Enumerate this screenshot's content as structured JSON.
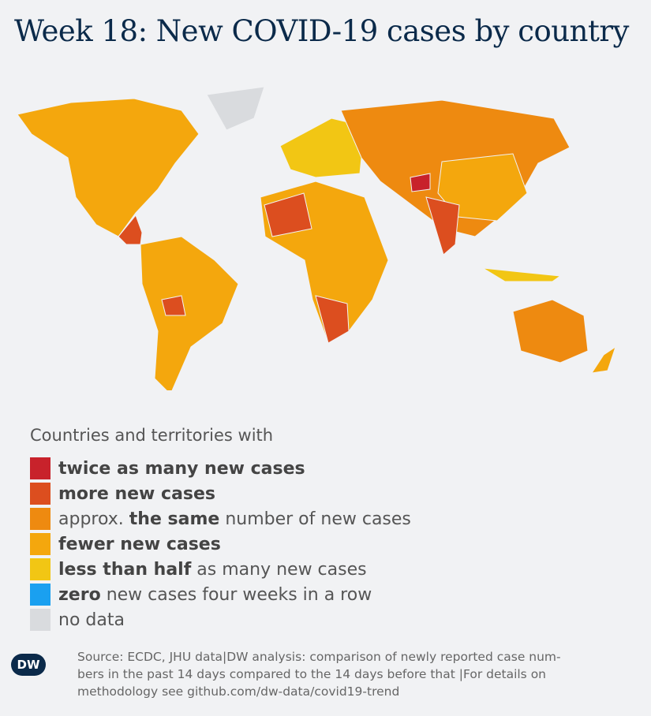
{
  "header": {
    "title": "Week 18: New COVID-19 cases by country"
  },
  "legend": {
    "heading": "Countries and territories with",
    "items": [
      {
        "color": "#c8222b",
        "parts": [
          {
            "text": "twice as many new cases",
            "bold": true
          }
        ]
      },
      {
        "color": "#dc4e1f",
        "parts": [
          {
            "text": "more new cases",
            "bold": true
          }
        ]
      },
      {
        "color": "#ee8a10",
        "parts": [
          {
            "text": "approx.",
            "bold": false
          },
          {
            "text": "the same",
            "bold": true
          },
          {
            "text": "number of new cases",
            "bold": false
          }
        ]
      },
      {
        "color": "#f4a70d",
        "parts": [
          {
            "text": "fewer new cases",
            "bold": true
          }
        ]
      },
      {
        "color": "#f2c614",
        "parts": [
          {
            "text": "less than half",
            "bold": true
          },
          {
            "text": "as many new cases",
            "bold": false
          }
        ]
      },
      {
        "color": "#1aa0f0",
        "parts": [
          {
            "text": "zero",
            "bold": true
          },
          {
            "text": "new cases four weeks in a row",
            "bold": false
          }
        ]
      },
      {
        "color": "#d9dbde",
        "parts": [
          {
            "text": "no data",
            "bold": false
          }
        ]
      }
    ]
  },
  "footer": {
    "logo": "DW",
    "source_lines": [
      "Source: ECDC, JHU data|DW analysis: comparison of newly reported case num-",
      "bers in the past 14 days compared to the 14 days before that |For details on",
      "methodology see github.com/dw-data/covid19-trend"
    ]
  }
}
